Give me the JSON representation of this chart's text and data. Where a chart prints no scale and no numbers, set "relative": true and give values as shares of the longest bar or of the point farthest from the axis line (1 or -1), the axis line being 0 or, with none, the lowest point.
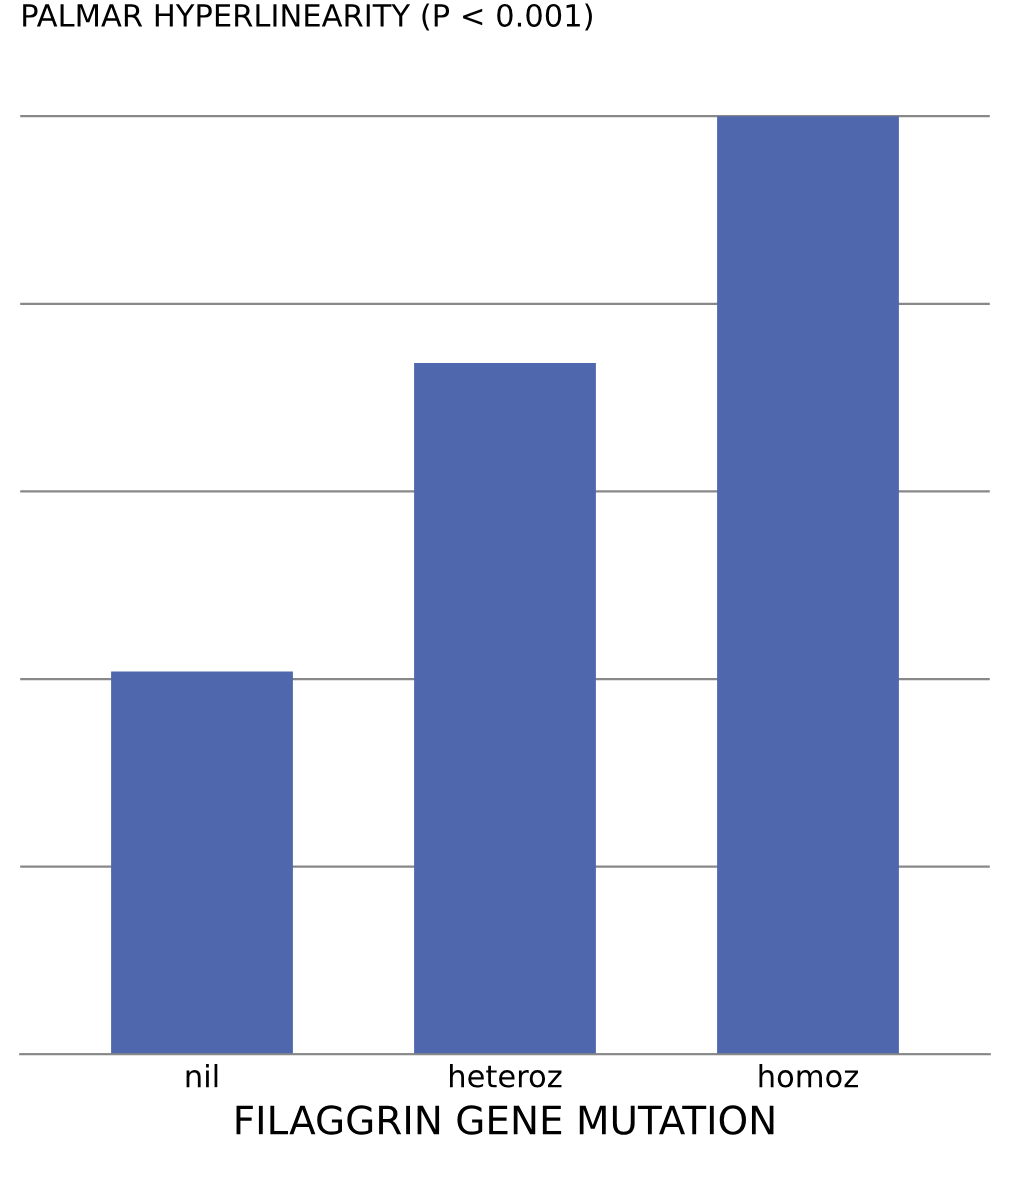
{
  "chart_data": {
    "type": "bar",
    "title": "PALMAR HYPERLINEARITY (P < 0.001)",
    "xlabel": "FILAGGRIN GENE MUTATION",
    "categories": [
      "nil",
      "heteroz",
      "homoz"
    ],
    "values": [
      0.408,
      0.737,
      1
    ],
    "color": "#4f67ad",
    "relative": true,
    "grid": "y"
  }
}
